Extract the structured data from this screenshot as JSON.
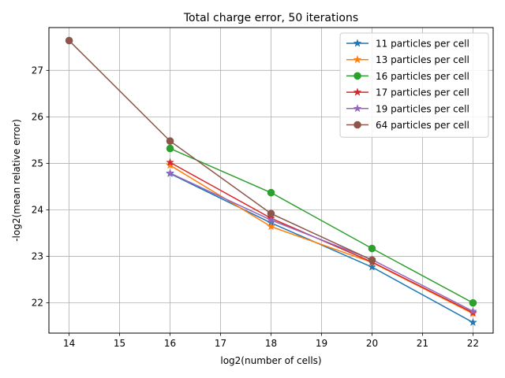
{
  "chart_data": {
    "type": "line",
    "title": "Total charge error, 50 iterations",
    "xlabel": "log2(number of cells)",
    "ylabel": "-log2(mean relative error)",
    "xlim": [
      13.6,
      22.4
    ],
    "ylim": [
      21.35,
      27.92
    ],
    "xticks": [
      14,
      15,
      16,
      17,
      18,
      19,
      20,
      21,
      22
    ],
    "yticks": [
      22,
      23,
      24,
      25,
      26,
      27
    ],
    "grid": true,
    "legend_position": "top-right",
    "series": [
      {
        "name": "11 particles per cell",
        "color": "#1f77b4",
        "marker": "star",
        "x": [
          16,
          18,
          20,
          22
        ],
        "y": [
          24.78,
          23.72,
          22.77,
          21.58
        ]
      },
      {
        "name": "13 particles per cell",
        "color": "#ff7f0e",
        "marker": "star",
        "x": [
          16,
          18,
          20,
          22
        ],
        "y": [
          24.96,
          23.64,
          22.87,
          21.77
        ]
      },
      {
        "name": "16 particles per cell",
        "color": "#2ca02c",
        "marker": "circle",
        "x": [
          16,
          18,
          20,
          22
        ],
        "y": [
          25.32,
          24.37,
          23.17,
          22.0
        ]
      },
      {
        "name": "17 particles per cell",
        "color": "#d62728",
        "marker": "star",
        "x": [
          16,
          18,
          20,
          22
        ],
        "y": [
          25.02,
          23.82,
          22.88,
          21.79
        ]
      },
      {
        "name": "19 particles per cell",
        "color": "#9467bd",
        "marker": "star",
        "x": [
          16,
          18,
          20,
          22
        ],
        "y": [
          24.79,
          23.78,
          22.93,
          21.82
        ]
      },
      {
        "name": "64 particles per cell",
        "color": "#8c564b",
        "marker": "circle",
        "x": [
          14,
          16,
          18,
          20
        ],
        "y": [
          27.64,
          25.48,
          23.92,
          22.92
        ]
      }
    ]
  }
}
